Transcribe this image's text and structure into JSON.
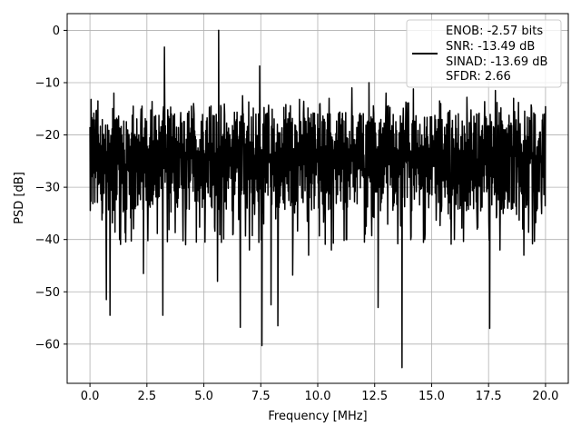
{
  "chart_data": {
    "type": "line",
    "title": "",
    "xlabel": "Frequency [MHz]",
    "ylabel": "PSD [dB]",
    "xlim": [
      -1.0,
      21.0
    ],
    "ylim": [
      -67.5,
      3.2
    ],
    "x_ticks": [
      0.0,
      2.5,
      5.0,
      7.5,
      10.0,
      12.5,
      15.0,
      17.5,
      20.0
    ],
    "x_tick_labels": [
      "0.0",
      "2.5",
      "5.0",
      "7.5",
      "10.0",
      "12.5",
      "15.0",
      "17.5",
      "20.0"
    ],
    "y_ticks": [
      0,
      -10,
      -20,
      -30,
      -40,
      -50,
      -60
    ],
    "y_tick_labels": [
      "0",
      "−10",
      "−20",
      "−30",
      "−40",
      "−50",
      "−60"
    ],
    "grid": true,
    "legend_position": "top-right",
    "line_color": "#000000",
    "series": [
      {
        "legend_lines": [
          "ENOB: -2.57 bits",
          "SNR: -13.49 dB",
          "SINAD: -13.69 dB",
          "SFDR: 2.66"
        ],
        "noise_band": {
          "x_start": 0.0,
          "x_end": 20.0,
          "upper": -16,
          "lower": -34,
          "center": -24
        },
        "peaks": [
          {
            "x": 0.05,
            "y": -13.2
          },
          {
            "x": 0.35,
            "y": -13.5
          },
          {
            "x": 1.05,
            "y": -12.0
          },
          {
            "x": 1.9,
            "y": -14.5
          },
          {
            "x": 3.27,
            "y": -3.2
          },
          {
            "x": 4.55,
            "y": -14.0
          },
          {
            "x": 5.65,
            "y": 0.0
          },
          {
            "x": 6.7,
            "y": -12.5
          },
          {
            "x": 7.45,
            "y": -6.8
          },
          {
            "x": 9.2,
            "y": -13.2
          },
          {
            "x": 10.5,
            "y": -13.0
          },
          {
            "x": 11.5,
            "y": -11.0
          },
          {
            "x": 12.25,
            "y": -10.0
          },
          {
            "x": 13.0,
            "y": -12.0
          },
          {
            "x": 14.2,
            "y": -11.2
          },
          {
            "x": 15.35,
            "y": -13.5
          },
          {
            "x": 16.55,
            "y": -12.8
          },
          {
            "x": 17.8,
            "y": -11.5
          },
          {
            "x": 18.6,
            "y": -13.0
          },
          {
            "x": 20.0,
            "y": -14.5
          }
        ],
        "dips": [
          {
            "x": 0.1,
            "y": -28.0
          },
          {
            "x": 0.55,
            "y": -35.0
          },
          {
            "x": 0.72,
            "y": -51.5
          },
          {
            "x": 0.88,
            "y": -54.5
          },
          {
            "x": 1.3,
            "y": -40.0
          },
          {
            "x": 2.35,
            "y": -46.5
          },
          {
            "x": 3.2,
            "y": -54.5
          },
          {
            "x": 4.2,
            "y": -41.0
          },
          {
            "x": 5.05,
            "y": -40.5
          },
          {
            "x": 5.6,
            "y": -48.0
          },
          {
            "x": 6.6,
            "y": -56.8
          },
          {
            "x": 7.0,
            "y": -42.0
          },
          {
            "x": 7.55,
            "y": -60.3
          },
          {
            "x": 7.95,
            "y": -52.5
          },
          {
            "x": 8.25,
            "y": -56.5
          },
          {
            "x": 8.9,
            "y": -46.8
          },
          {
            "x": 9.6,
            "y": -43.0
          },
          {
            "x": 10.6,
            "y": -42.0
          },
          {
            "x": 11.25,
            "y": -40.0
          },
          {
            "x": 12.05,
            "y": -40.5
          },
          {
            "x": 12.65,
            "y": -53.0
          },
          {
            "x": 13.7,
            "y": -64.5
          },
          {
            "x": 14.7,
            "y": -40.0
          },
          {
            "x": 16.0,
            "y": -40.0
          },
          {
            "x": 17.55,
            "y": -57.0
          },
          {
            "x": 18.0,
            "y": -42.0
          },
          {
            "x": 19.0,
            "y": -38.0
          },
          {
            "x": 19.05,
            "y": -43.0
          }
        ]
      }
    ]
  }
}
